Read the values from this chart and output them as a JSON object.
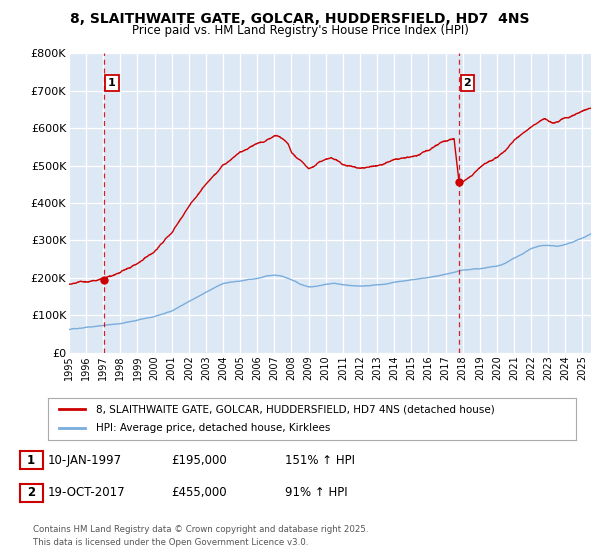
{
  "title": "8, SLAITHWAITE GATE, GOLCAR, HUDDERSFIELD, HD7  4NS",
  "subtitle": "Price paid vs. HM Land Registry's House Price Index (HPI)",
  "ylabel_ticks": [
    "£0",
    "£100K",
    "£200K",
    "£300K",
    "£400K",
    "£500K",
    "£600K",
    "£700K",
    "£800K"
  ],
  "ytick_values": [
    0,
    100000,
    200000,
    300000,
    400000,
    500000,
    600000,
    700000,
    800000
  ],
  "ylim": [
    0,
    800000
  ],
  "xlim_start": 1995.0,
  "xlim_end": 2025.5,
  "marker1_x": 1997.03,
  "marker1_y": 195000,
  "marker2_x": 2017.8,
  "marker2_y": 455000,
  "legend_line1": "8, SLAITHWAITE GATE, GOLCAR, HUDDERSFIELD, HD7 4NS (detached house)",
  "legend_line2": "HPI: Average price, detached house, Kirklees",
  "table_row1": [
    "1",
    "10-JAN-1997",
    "£195,000",
    "151% ↑ HPI"
  ],
  "table_row2": [
    "2",
    "19-OCT-2017",
    "£455,000",
    "91% ↑ HPI"
  ],
  "footer": "Contains HM Land Registry data © Crown copyright and database right 2025.\nThis data is licensed under the Open Government Licence v3.0.",
  "price_color": "#cc0000",
  "hpi_color": "#7aaddc",
  "vline_color": "#cc0000",
  "background_plot": "#dde8f5",
  "background_fig": "#ffffff"
}
